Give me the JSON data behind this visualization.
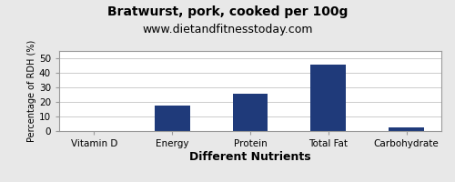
{
  "title": "Bratwurst, pork, cooked per 100g",
  "subtitle": "www.dietandfitnesstoday.com",
  "xlabel": "Different Nutrients",
  "ylabel": "Percentage of RDH (%)",
  "categories": [
    "Vitamin D",
    "Energy",
    "Protein",
    "Total Fat",
    "Carbohydrate"
  ],
  "values": [
    0,
    17.5,
    25.5,
    45.5,
    2.5
  ],
  "bar_color": "#1f3a7a",
  "ylim": [
    0,
    55
  ],
  "yticks": [
    0,
    10,
    20,
    30,
    40,
    50
  ],
  "background_color": "#e8e8e8",
  "plot_bg_color": "#ffffff",
  "title_fontsize": 10,
  "subtitle_fontsize": 9,
  "xlabel_fontsize": 9,
  "ylabel_fontsize": 7,
  "tick_fontsize": 7.5,
  "bar_width": 0.45
}
